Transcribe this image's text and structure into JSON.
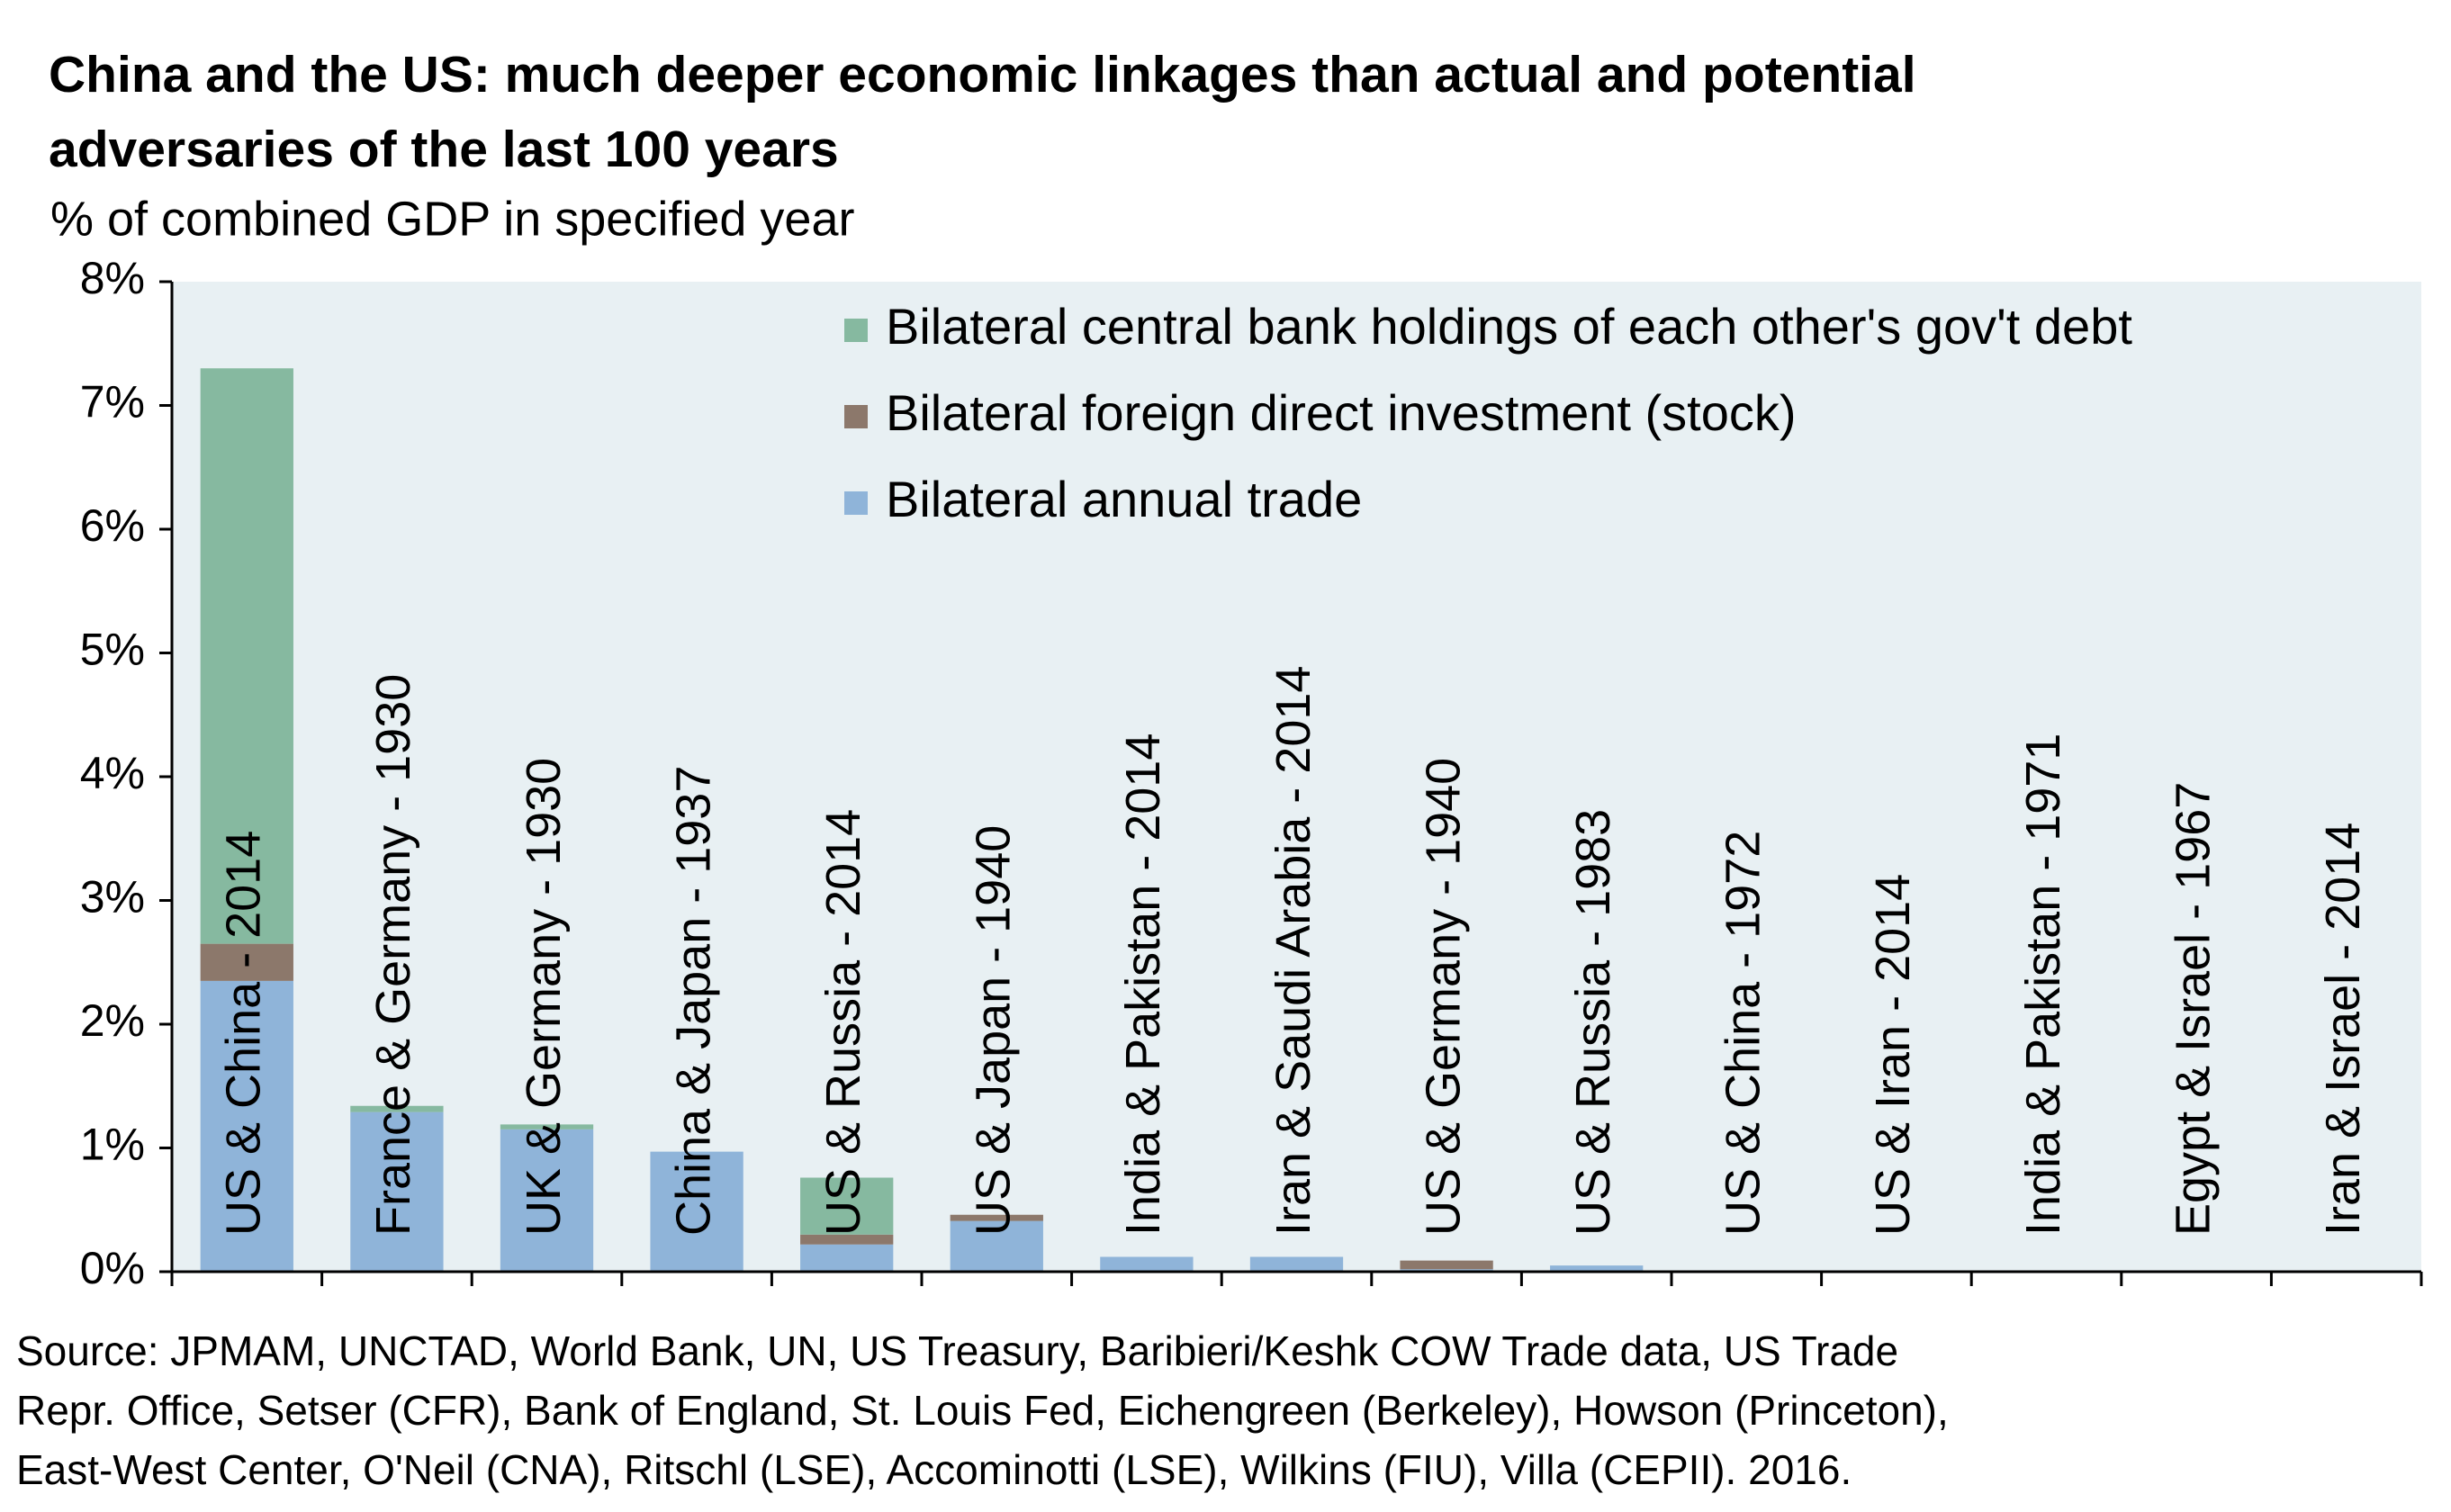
{
  "chart_data": {
    "type": "stacked_bar",
    "title": [
      "China and the US: much deeper economic linkages than actual and potential",
      "adversaries of the last 100 years"
    ],
    "subtitle": "% of combined GDP in specified year",
    "categories": [
      "US & China - 2014",
      "France & Germany - 1930",
      "UK & Germany - 1930",
      "China & Japan - 1937",
      "US & Russia - 2014",
      "US & Japan - 1940",
      "India & Pakistan - 2014",
      "Iran & Saudi Arabia - 2014",
      "US & Germany - 1940",
      "US & Russia - 1983",
      "US & China - 1972",
      "US & Iran - 2014",
      "India & Pakistan - 1971",
      "Egypt & Israel - 1967",
      "Iran & Israel - 2014"
    ],
    "series": [
      {
        "name": "Bilateral annual trade",
        "color": "#8fb4d9",
        "values": [
          2.35,
          1.29,
          1.15,
          0.97,
          0.22,
          0.41,
          0.12,
          0.12,
          0.02,
          0.05,
          0,
          0,
          0,
          0,
          0
        ]
      },
      {
        "name": "Bilateral foreign direct investment (stock)",
        "color": "#8c786b",
        "values": [
          0.3,
          0,
          0,
          0,
          0.08,
          0.05,
          0,
          0,
          0.07,
          0,
          0,
          0,
          0,
          0,
          0
        ]
      },
      {
        "name": "Bilateral central bank holdings of each other's gov't debt",
        "color": "#86b9a0",
        "values": [
          4.65,
          0.05,
          0.04,
          0,
          0.46,
          0,
          0,
          0,
          0,
          0,
          0,
          0,
          0,
          0,
          0
        ]
      }
    ],
    "ylim": [
      0,
      8
    ],
    "yticks": [
      {
        "value": 0,
        "label": "0%"
      },
      {
        "value": 1,
        "label": "1%"
      },
      {
        "value": 2,
        "label": "2%"
      },
      {
        "value": 3,
        "label": "3%"
      },
      {
        "value": 4,
        "label": "4%"
      },
      {
        "value": 5,
        "label": "5%"
      },
      {
        "value": 6,
        "label": "6%"
      },
      {
        "value": 7,
        "label": "7%"
      },
      {
        "value": 8,
        "label": "8%"
      }
    ],
    "grid": false,
    "legend": "top",
    "source": [
      "Source: JPMAM, UNCTAD, World Bank, UN, US Treasury, Baribieri/Keshk COW Trade data, US Trade",
      "Repr. Office, Setser (CFR), Bank of England, St. Louis Fed, Eichengreen (Berkeley), Howson (Princeton),",
      "East-West Center, O'Neil (CNA), Ritschl (LSE), Accominotti (LSE), Wilkins (FIU), Villa (CEPII). 2016."
    ]
  }
}
